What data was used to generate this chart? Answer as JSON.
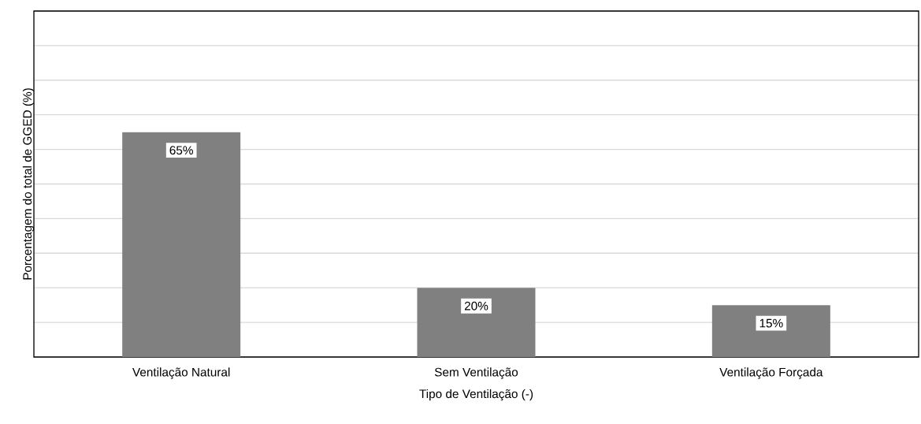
{
  "chart_data": {
    "type": "bar",
    "xlabel": "Tipo de Ventilação (-)",
    "ylabel": "Porcentagem do total de GGED (%)",
    "categories": [
      "Ventilação Natural",
      "Sem Ventilação",
      "Ventilação Forçada"
    ],
    "values": [
      65,
      20,
      15
    ],
    "value_labels": [
      "65%",
      "20%",
      "15%"
    ],
    "color": "#808080",
    "ylim": [
      0,
      100
    ],
    "yticks": [
      {
        "value": 0,
        "label": null
      },
      {
        "value": 10,
        "label": null
      },
      {
        "value": 20,
        "label": null
      },
      {
        "value": 30,
        "label": null
      },
      {
        "value": 40,
        "label": null
      },
      {
        "value": 50,
        "label": null
      },
      {
        "value": 60,
        "label": null
      },
      {
        "value": 70,
        "label": null
      },
      {
        "value": 80,
        "label": null
      },
      {
        "value": 90,
        "label": null
      },
      {
        "value": 100,
        "label": null
      }
    ],
    "grid": "y",
    "tick_labels": "x"
  }
}
